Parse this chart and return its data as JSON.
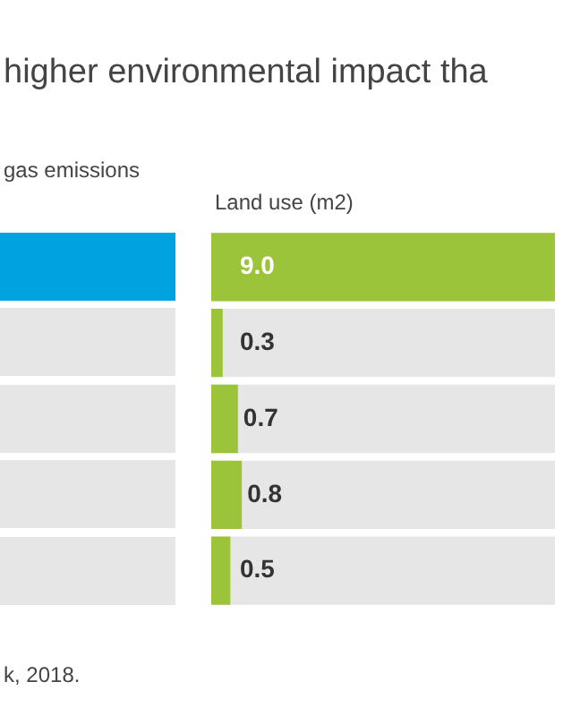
{
  "chart_data": {
    "type": "bar",
    "orientation": "horizontal",
    "title": "higher environmental impact tha",
    "subtitle": "Land use (m2)",
    "annotations": [
      "gas emissions",
      "k, 2018."
    ],
    "categories": [
      null,
      null,
      null,
      null,
      null
    ],
    "values": [
      9.0,
      0.3,
      0.7,
      0.8,
      0.5
    ],
    "value_labels": [
      "9.0",
      "0.3",
      "0.7",
      "0.8",
      "0.5"
    ],
    "color": "#9bc43a",
    "xlim": [
      0,
      9
    ],
    "tick_labels": false
  }
}
